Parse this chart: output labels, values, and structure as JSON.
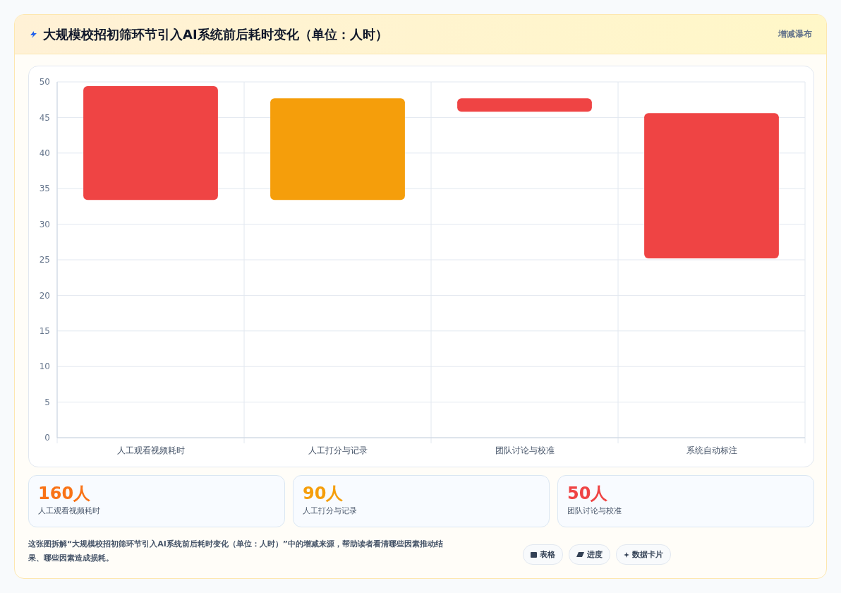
{
  "chart_data": [
    {
      "type": "bar",
      "title": "大规模校招初筛环节引入AI系统前后耗时变化（单位：人时）",
      "categories": [
        "人工观看视频耗时",
        "人工打分与记录",
        "团队讨论与校准",
        "系统自动标注"
      ],
      "values": [
        16,
        14.3,
        1.9,
        20.4
      ],
      "base": [
        33.4,
        33.4,
        45.8,
        25.2
      ],
      "colors": [
        "#ef4444",
        "#f59e0b",
        "#ef4444",
        "#ef4444"
      ],
      "ylim": [
        0,
        50
      ],
      "yticks": [
        0,
        5,
        10,
        15,
        20,
        25,
        30,
        35,
        40,
        45,
        50
      ],
      "grid": true,
      "annotations": [
        "增减瀑布",
        "这张图拆解“大规模校招初筛环节引入AI系统前后耗时变化（单位：人时）”中的增减来源，帮助读者看清哪些因素推动结果、哪些因素造成损耗。",
        "表格",
        "进度",
        "数据卡片"
      ]
    },
    {
      "type": "other",
      "categories": [
        "人工观看视频耗时",
        "人工打分与记录",
        "团队讨论与校准"
      ],
      "value_labels": [
        "160人",
        "90人",
        "50人"
      ]
    }
  ]
}
